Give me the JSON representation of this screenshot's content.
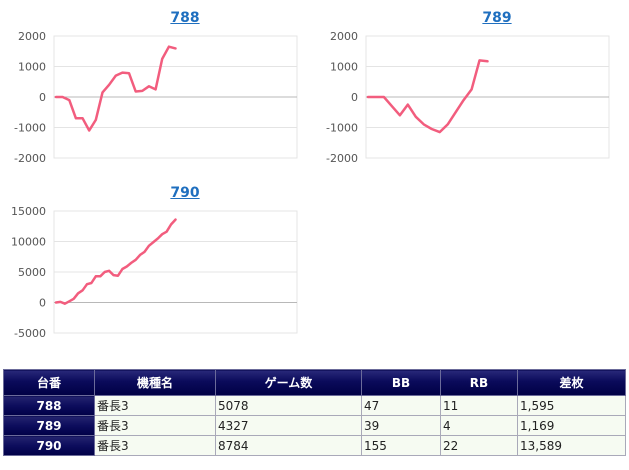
{
  "charts_section": {
    "charts": [
      {
        "title": "788"
      },
      {
        "title": "789"
      },
      {
        "title": "790"
      }
    ]
  },
  "chart_data": [
    {
      "type": "line",
      "title": "788",
      "ylim": [
        -2000,
        2000
      ],
      "yticks": [
        2000,
        1000,
        0,
        -1000,
        -2000
      ],
      "grid": true,
      "series": [
        {
          "color": "#f25d7e",
          "values": [
            0,
            0,
            -100,
            -700,
            -700,
            -1100,
            -750,
            150,
            400,
            700,
            800,
            780,
            180,
            200,
            350,
            250,
            1250,
            1650,
            1595
          ]
        }
      ]
    },
    {
      "type": "line",
      "title": "789",
      "ylim": [
        -2000,
        2000
      ],
      "yticks": [
        2000,
        1000,
        0,
        -1000,
        -2000
      ],
      "grid": true,
      "series": [
        {
          "color": "#f25d7e",
          "values": [
            0,
            0,
            0,
            -300,
            -600,
            -250,
            -650,
            -900,
            -1050,
            -1150,
            -900,
            -500,
            -100,
            250,
            1200,
            1169
          ]
        }
      ]
    },
    {
      "type": "line",
      "title": "790",
      "ylim": [
        -5000,
        15000
      ],
      "yticks": [
        15000,
        10000,
        5000,
        0,
        -5000
      ],
      "grid": true,
      "series": [
        {
          "color": "#f25d7e",
          "values": [
            0,
            100,
            -200,
            200,
            600,
            1500,
            2000,
            3000,
            3200,
            4300,
            4300,
            5000,
            5200,
            4500,
            4400,
            5500,
            5900,
            6500,
            7000,
            7800,
            8300,
            9300,
            9900,
            10500,
            11200,
            11600,
            12800,
            13589
          ]
        }
      ]
    }
  ],
  "table": {
    "headers": [
      "台番",
      "機種名",
      "ゲーム数",
      "BB",
      "RB",
      "差枚"
    ],
    "rows": [
      [
        "788",
        "番長3",
        "5078",
        "47",
        "11",
        "1,595"
      ],
      [
        "789",
        "番長3",
        "4327",
        "39",
        "4",
        "1,169"
      ],
      [
        "790",
        "番長3",
        "8784",
        "155",
        "22",
        "13,589"
      ]
    ]
  }
}
